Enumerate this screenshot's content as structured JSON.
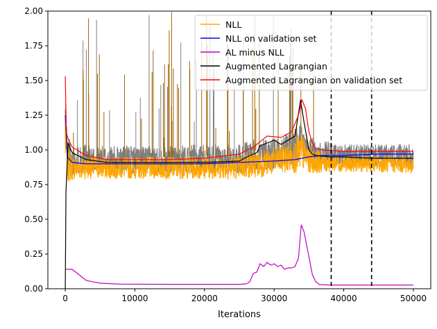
{
  "chart_data": {
    "type": "line",
    "title": "",
    "xlabel": "Iterations",
    "ylabel": "",
    "xlim": [
      -2500,
      52500
    ],
    "ylim": [
      0.0,
      2.0
    ],
    "grid": false,
    "legend_position": "top-right",
    "x_ticks": [
      0,
      10000,
      20000,
      30000,
      40000,
      50000
    ],
    "x_tick_labels": [
      "0",
      "10000",
      "20000",
      "30000",
      "40000",
      "50000"
    ],
    "y_ticks": [
      0.0,
      0.25,
      0.5,
      0.75,
      1.0,
      1.25,
      1.5,
      1.75,
      2.0
    ],
    "y_tick_labels": [
      "0.00",
      "0.25",
      "0.50",
      "0.75",
      "1.00",
      "1.25",
      "1.50",
      "1.75",
      "2.00"
    ],
    "vlines": [
      {
        "x": 38200,
        "style": "dashed",
        "color": "#000000"
      },
      {
        "x": 44000,
        "style": "dashed",
        "color": "#000000"
      }
    ],
    "series": [
      {
        "name": "NLL",
        "color": "#ffa500",
        "kind": "noisy-band",
        "x": [
          0,
          300,
          1000,
          3000,
          6000,
          10000,
          15000,
          20000,
          25000,
          26000,
          28000,
          30000,
          32000,
          33000,
          34000,
          35000,
          36000,
          38000,
          40000,
          44000,
          50000
        ],
        "low": [
          0.8,
          0.76,
          0.78,
          0.79,
          0.79,
          0.79,
          0.79,
          0.79,
          0.79,
          0.79,
          0.8,
          0.82,
          0.83,
          0.83,
          0.85,
          0.83,
          0.83,
          0.84,
          0.84,
          0.84,
          0.83
        ],
        "high": [
          1.45,
          1.05,
          0.96,
          0.96,
          0.95,
          0.95,
          0.95,
          0.96,
          0.96,
          0.99,
          1.0,
          1.02,
          1.05,
          1.08,
          1.12,
          1.02,
          1.0,
          0.98,
          0.96,
          0.96,
          0.96
        ]
      },
      {
        "name": "NLL on validation set",
        "color": "#0000ff",
        "x": [
          0,
          300,
          1000,
          3000,
          6000,
          10000,
          15000,
          20000,
          25000,
          30000,
          33000,
          35000,
          37000,
          40000,
          45000,
          50000
        ],
        "y": [
          1.25,
          0.95,
          0.91,
          0.9,
          0.9,
          0.9,
          0.9,
          0.9,
          0.91,
          0.92,
          0.93,
          0.95,
          0.96,
          0.96,
          0.97,
          0.97
        ]
      },
      {
        "name": "AL minus NLL",
        "color": "#bf00bf",
        "x": [
          0,
          1000,
          2000,
          3000,
          5000,
          8000,
          15000,
          25000,
          26000,
          26500,
          27000,
          27500,
          28000,
          28500,
          29000,
          29500,
          30000,
          30500,
          31000,
          31500,
          32000,
          32500,
          33000,
          33500,
          33900,
          34300,
          34800,
          35500,
          36000,
          36500,
          38000,
          50000
        ],
        "y": [
          0.14,
          0.14,
          0.1,
          0.06,
          0.04,
          0.033,
          0.032,
          0.032,
          0.035,
          0.05,
          0.11,
          0.12,
          0.18,
          0.16,
          0.19,
          0.17,
          0.18,
          0.16,
          0.17,
          0.14,
          0.15,
          0.15,
          0.16,
          0.22,
          0.46,
          0.41,
          0.28,
          0.1,
          0.05,
          0.03,
          0.027,
          0.027
        ]
      },
      {
        "name": "Augmented Lagrangian",
        "color": "#000000",
        "x": [
          0,
          100,
          400,
          1000,
          3000,
          6000,
          10000,
          15000,
          20000,
          25000,
          26500,
          27500,
          28000,
          29000,
          30000,
          31000,
          32000,
          33000,
          33800,
          34300,
          35000,
          35500,
          36000,
          38000,
          40000,
          44000,
          50000
        ],
        "y": [
          0.0,
          0.7,
          1.05,
          0.98,
          0.93,
          0.91,
          0.91,
          0.91,
          0.91,
          0.92,
          0.96,
          0.98,
          1.03,
          1.05,
          1.07,
          1.04,
          1.07,
          1.1,
          1.36,
          1.2,
          1.0,
          0.97,
          0.96,
          0.95,
          0.95,
          0.94,
          0.94
        ]
      },
      {
        "name": "Augmented Lagrangian on validation set",
        "color": "#ff0000",
        "x": [
          0,
          150,
          500,
          1000,
          3000,
          6000,
          10000,
          15000,
          20000,
          25000,
          27000,
          29000,
          31000,
          32500,
          33500,
          34000,
          34500,
          35000,
          35500,
          36000,
          37000,
          40000,
          45000,
          50000
        ],
        "y": [
          1.53,
          1.12,
          1.07,
          1.02,
          0.96,
          0.93,
          0.93,
          0.93,
          0.94,
          0.97,
          1.02,
          1.1,
          1.09,
          1.13,
          1.25,
          1.36,
          1.3,
          1.13,
          1.05,
          1.01,
          1.0,
          0.99,
          0.99,
          0.99
        ]
      }
    ]
  }
}
